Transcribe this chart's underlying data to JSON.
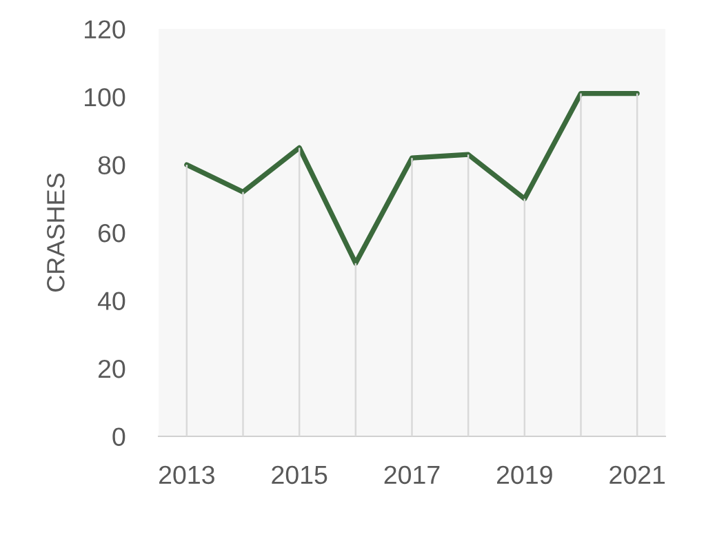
{
  "chart_data": {
    "type": "line",
    "ylabel": "CRASHES",
    "x": [
      2013,
      2014,
      2015,
      2016,
      2017,
      2018,
      2019,
      2020,
      2021
    ],
    "series": [
      {
        "type": "bar",
        "color": "#d9d9d9",
        "values": [
          80,
          72,
          85,
          51,
          82,
          83,
          70,
          101,
          101
        ]
      },
      {
        "color": "#3b6a3c",
        "values": [
          80,
          72,
          85,
          51,
          82,
          83,
          70,
          101,
          101
        ]
      }
    ],
    "xlim": [
      2012.5,
      2021.5
    ],
    "xticks": [
      2013,
      2015,
      2017,
      2019,
      2021
    ],
    "ylim": [
      0,
      120
    ],
    "yticks": [
      0,
      20,
      40,
      60,
      80,
      100,
      120
    ],
    "line_style": "solid"
  }
}
